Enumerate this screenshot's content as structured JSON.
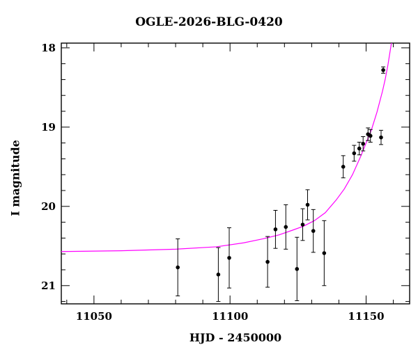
{
  "chart_data": {
    "type": "scatter",
    "title": "OGLE-2026-BLG-0420",
    "xlabel": "HJD - 2450000",
    "ylabel": "I magnitude",
    "xlim": [
      11038,
      11166
    ],
    "ylim": [
      21.23,
      17.94
    ],
    "y_inverted": true,
    "xticks_major": [
      11050,
      11100,
      11150
    ],
    "xticks_minor_step": 10,
    "yticks_major": [
      18,
      19,
      20,
      21
    ],
    "yticks_minor_step": 0.2,
    "grid": false,
    "colors": {
      "points": "#000000",
      "model": "#ff00ff",
      "axes": "#000000"
    },
    "points": [
      {
        "x": 11080.8,
        "y": 20.77,
        "err": 0.36
      },
      {
        "x": 11095.7,
        "y": 20.86,
        "err": 0.34
      },
      {
        "x": 11099.7,
        "y": 20.65,
        "err": 0.38
      },
      {
        "x": 11113.8,
        "y": 20.7,
        "err": 0.32
      },
      {
        "x": 11116.7,
        "y": 20.29,
        "err": 0.24
      },
      {
        "x": 11120.5,
        "y": 20.26,
        "err": 0.28
      },
      {
        "x": 11124.6,
        "y": 20.79,
        "err": 0.4
      },
      {
        "x": 11126.7,
        "y": 20.23,
        "err": 0.2
      },
      {
        "x": 11128.5,
        "y": 19.98,
        "err": 0.19
      },
      {
        "x": 11130.6,
        "y": 20.31,
        "err": 0.27
      },
      {
        "x": 11134.6,
        "y": 20.59,
        "err": 0.41
      },
      {
        "x": 11141.6,
        "y": 19.5,
        "err": 0.14
      },
      {
        "x": 11145.6,
        "y": 19.33,
        "err": 0.1
      },
      {
        "x": 11147.5,
        "y": 19.27,
        "err": 0.08
      },
      {
        "x": 11148.9,
        "y": 19.21,
        "err": 0.09
      },
      {
        "x": 11150.7,
        "y": 19.09,
        "err": 0.08
      },
      {
        "x": 11151.6,
        "y": 19.11,
        "err": 0.08
      },
      {
        "x": 11155.5,
        "y": 19.13,
        "err": 0.09
      },
      {
        "x": 11156.3,
        "y": 18.28,
        "err": 0.04
      }
    ],
    "model_curve": {
      "name": "",
      "x": [
        11038,
        11060,
        11080,
        11095,
        11105,
        11112,
        11118,
        11123,
        11127,
        11131,
        11135,
        11139,
        11142,
        11145,
        11148,
        11150,
        11152,
        11154,
        11156,
        11157,
        11158,
        11159.3
      ],
      "y": [
        20.57,
        20.56,
        20.54,
        20.51,
        20.46,
        20.41,
        20.36,
        20.3,
        20.25,
        20.18,
        20.08,
        19.92,
        19.78,
        19.6,
        19.37,
        19.2,
        19.03,
        18.81,
        18.55,
        18.4,
        18.22,
        17.94
      ]
    }
  }
}
